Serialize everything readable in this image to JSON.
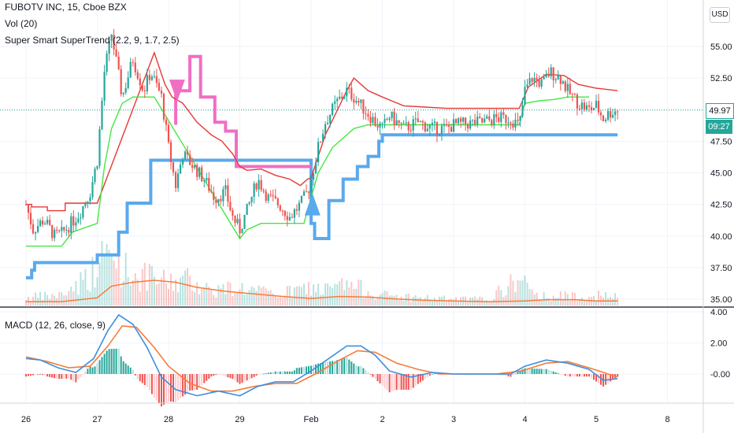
{
  "legend": {
    "title": "FUBOTV INC, 15, Cboe BZX",
    "volume": "Vol (20)",
    "supertrend": "Super Smart SuperTrend (2.2, 9, 1.7, 2.5)",
    "macd": "MACD (12, 26, close, 9)"
  },
  "currency_badge": "USD",
  "last_price_label": "49.97",
  "countdown_label": "09:27",
  "colors": {
    "up": "#26a69a",
    "down": "#ef5350",
    "trend_upper": "#e53935",
    "trend_lower": "#43e843",
    "super_blue": "#5aa9ec",
    "super_pink": "#f06ec4",
    "macd_line": "#3d8fe0",
    "signal_line": "#f57c3a",
    "volume_ma": "#f57c3a",
    "last_price_line": "#26a69a"
  },
  "chart_data": [
    {
      "type": "candlestick",
      "title": "FUBOTV INC, 15, Cboe BZX",
      "x_ticks": [
        "26",
        "27",
        "28",
        "29",
        "Feb",
        "2",
        "3",
        "4",
        "5",
        "8"
      ],
      "y_ticks": [
        "35.00",
        "37.50",
        "40.00",
        "42.50",
        "45.00",
        "47.50",
        "50.00",
        "52.50",
        "55.00"
      ],
      "ylim": [
        34.5,
        57
      ],
      "last_price": 49.97,
      "price_path": [
        [
          0,
          42.5
        ],
        [
          0.1,
          40.5
        ],
        [
          0.25,
          41.3
        ],
        [
          0.4,
          40.0
        ],
        [
          0.5,
          40.2
        ],
        [
          0.6,
          40.8
        ],
        [
          0.75,
          41.8
        ],
        [
          0.9,
          43.5
        ],
        [
          1.0,
          46.0
        ],
        [
          1.1,
          53.0
        ],
        [
          1.2,
          56.0
        ],
        [
          1.35,
          51.0
        ],
        [
          1.5,
          54.0
        ],
        [
          1.65,
          51.5
        ],
        [
          1.75,
          53.0
        ],
        [
          1.9,
          51.0
        ],
        [
          2.0,
          47.0
        ],
        [
          2.1,
          44.0
        ],
        [
          2.2,
          46.5
        ],
        [
          2.35,
          45.5
        ],
        [
          2.5,
          44.5
        ],
        [
          2.65,
          43.0
        ],
        [
          2.8,
          43.5
        ],
        [
          2.9,
          41.5
        ],
        [
          3.0,
          40.5
        ],
        [
          3.1,
          42.0
        ],
        [
          3.25,
          44.5
        ],
        [
          3.4,
          43.0
        ],
        [
          3.55,
          42.5
        ],
        [
          3.7,
          41.5
        ],
        [
          3.85,
          42.5
        ],
        [
          3.95,
          43.5
        ],
        [
          4.0,
          44.5
        ],
        [
          4.1,
          47.0
        ],
        [
          4.2,
          49.0
        ],
        [
          4.35,
          50.5
        ],
        [
          4.5,
          51.5
        ],
        [
          4.6,
          51.0
        ],
        [
          4.75,
          50.0
        ],
        [
          4.9,
          49.0
        ],
        [
          5.0,
          48.5
        ],
        [
          5.1,
          49.5
        ],
        [
          5.3,
          48.5
        ],
        [
          5.5,
          49.0
        ],
        [
          5.7,
          48.5
        ],
        [
          5.9,
          48.5
        ],
        [
          6.0,
          48.8
        ],
        [
          6.2,
          48.9
        ],
        [
          6.4,
          49.0
        ],
        [
          6.6,
          49.3
        ],
        [
          6.8,
          49.3
        ],
        [
          6.92,
          48.7
        ],
        [
          7.0,
          51.5
        ],
        [
          7.1,
          52.5
        ],
        [
          7.25,
          52.0
        ],
        [
          7.35,
          53.0
        ],
        [
          7.5,
          52.5
        ],
        [
          7.6,
          51.5
        ],
        [
          7.75,
          50.5
        ],
        [
          7.9,
          50.0
        ],
        [
          8.0,
          50.3
        ],
        [
          8.1,
          49.3
        ],
        [
          8.2,
          49.8
        ],
        [
          8.3,
          49.97
        ]
      ],
      "supertrend_upper": [
        [
          0,
          42.5
        ],
        [
          0.08,
          42.5
        ],
        [
          0.08,
          42.3
        ],
        [
          0.3,
          42.3
        ],
        [
          0.3,
          42.0
        ],
        [
          0.55,
          42.0
        ],
        [
          0.55,
          42.6
        ],
        [
          1.0,
          42.6
        ],
        [
          1.8,
          54.5
        ],
        [
          1.95,
          52.0
        ],
        [
          2.05,
          51.0
        ],
        [
          2.2,
          50.5
        ],
        [
          2.4,
          49.0
        ],
        [
          2.6,
          48.0
        ],
        [
          2.75,
          47.5
        ],
        [
          2.9,
          46.5
        ],
        [
          3.0,
          45.5
        ],
        [
          3.1,
          45.2
        ],
        [
          3.3,
          45.3
        ],
        [
          3.5,
          44.8
        ],
        [
          3.7,
          44.5
        ],
        [
          3.85,
          44.0
        ],
        [
          3.95,
          44.5
        ],
        [
          4.0,
          44.6
        ],
        [
          4.2,
          48.0
        ],
        [
          4.5,
          51.5
        ],
        [
          4.6,
          52.5
        ],
        [
          4.8,
          51.5
        ],
        [
          5.0,
          51.0
        ],
        [
          5.3,
          50.3
        ],
        [
          5.6,
          50.2
        ],
        [
          5.9,
          50.1
        ],
        [
          6.3,
          50.1
        ],
        [
          6.6,
          50.1
        ],
        [
          6.92,
          50.1
        ],
        [
          7.05,
          51.8
        ],
        [
          7.3,
          52.8
        ],
        [
          7.55,
          52.7
        ],
        [
          7.75,
          52.0
        ],
        [
          8.0,
          51.7
        ],
        [
          8.3,
          51.5
        ]
      ],
      "supertrend_lower": [
        [
          0,
          39.2
        ],
        [
          0.5,
          39.2
        ],
        [
          0.65,
          40.3
        ],
        [
          1.0,
          41.0
        ],
        [
          1.1,
          45.5
        ],
        [
          1.2,
          48.5
        ],
        [
          1.35,
          50.5
        ],
        [
          1.5,
          51.0
        ],
        [
          1.8,
          51.0
        ],
        [
          3.0,
          39.8
        ],
        [
          3.1,
          40.5
        ],
        [
          3.3,
          41.0
        ],
        [
          3.9,
          41.0
        ],
        [
          4.1,
          45.0
        ],
        [
          4.3,
          47.0
        ],
        [
          4.6,
          48.5
        ],
        [
          4.8,
          48.8
        ],
        [
          5.1,
          48.8
        ],
        [
          5.5,
          48.8
        ],
        [
          6.0,
          48.8
        ],
        [
          6.5,
          48.8
        ],
        [
          6.92,
          48.8
        ],
        [
          7.0,
          50.5
        ],
        [
          7.2,
          50.7
        ],
        [
          7.4,
          50.8
        ],
        [
          7.6,
          51.0
        ],
        [
          7.9,
          51.0
        ]
      ],
      "super_blue": [
        [
          0,
          36.7
        ],
        [
          0.08,
          36.7
        ],
        [
          0.08,
          37.3
        ],
        [
          0.12,
          37.3
        ],
        [
          0.12,
          37.9
        ],
        [
          1.0,
          37.9
        ],
        [
          1.0,
          38.5
        ],
        [
          1.3,
          38.5
        ],
        [
          1.3,
          40.3
        ],
        [
          1.42,
          40.3
        ],
        [
          1.42,
          42.6
        ],
        [
          1.75,
          42.6
        ],
        [
          1.75,
          46.0
        ],
        [
          2.1,
          46.0
        ],
        [
          2.3,
          46.0
        ],
        [
          2.3,
          46.0
        ],
        [
          3.0,
          46.0
        ],
        [
          4.0,
          46.0
        ],
        [
          4.0,
          41.0
        ],
        [
          4.05,
          41.0
        ],
        [
          4.05,
          39.8
        ],
        [
          4.25,
          39.8
        ],
        [
          4.25,
          42.8
        ],
        [
          4.45,
          42.8
        ],
        [
          4.45,
          44.5
        ],
        [
          4.65,
          44.5
        ],
        [
          4.65,
          45.5
        ],
        [
          4.8,
          45.5
        ],
        [
          4.8,
          46.3
        ],
        [
          4.95,
          46.3
        ],
        [
          4.95,
          47.5
        ],
        [
          5.0,
          47.5
        ],
        [
          5.0,
          48.0
        ],
        [
          8.3,
          48.0
        ]
      ],
      "super_pink": [
        [
          2.1,
          48.8
        ],
        [
          2.1,
          51.5
        ],
        [
          2.3,
          51.5
        ],
        [
          2.3,
          54.2
        ],
        [
          2.45,
          54.2
        ],
        [
          2.45,
          51.0
        ],
        [
          2.65,
          51.0
        ],
        [
          2.65,
          49.0
        ],
        [
          2.8,
          49.0
        ],
        [
          2.8,
          48.3
        ],
        [
          2.95,
          48.3
        ],
        [
          2.95,
          45.5
        ],
        [
          3.4,
          45.5
        ],
        [
          4.0,
          45.5
        ]
      ],
      "signals": [
        {
          "type": "sell",
          "x": 2.12,
          "price": 51.5
        },
        {
          "type": "buy",
          "x": 4.02,
          "price": 42.5
        }
      ]
    },
    {
      "type": "bar",
      "title": "Vol (20)",
      "volume_peaks": [
        [
          0,
          0.15
        ],
        [
          0.5,
          0.2
        ],
        [
          1.0,
          0.7
        ],
        [
          1.1,
          1.0
        ],
        [
          1.25,
          0.85
        ],
        [
          1.5,
          0.6
        ],
        [
          2.0,
          0.45
        ],
        [
          2.3,
          0.5
        ],
        [
          2.6,
          0.3
        ],
        [
          3.0,
          0.35
        ],
        [
          3.5,
          0.2
        ],
        [
          4.0,
          0.35
        ],
        [
          4.2,
          0.3
        ],
        [
          4.5,
          0.4
        ],
        [
          5.0,
          0.2
        ],
        [
          5.5,
          0.15
        ],
        [
          6.0,
          0.12
        ],
        [
          6.5,
          0.12
        ],
        [
          6.95,
          0.55
        ],
        [
          7.1,
          0.2
        ],
        [
          7.5,
          0.18
        ],
        [
          8.0,
          0.2
        ],
        [
          8.3,
          0.15
        ]
      ],
      "volume_ma": [
        [
          0,
          0.06
        ],
        [
          0.5,
          0.06
        ],
        [
          1.0,
          0.12
        ],
        [
          1.2,
          0.3
        ],
        [
          1.5,
          0.36
        ],
        [
          1.8,
          0.39
        ],
        [
          2.1,
          0.36
        ],
        [
          2.4,
          0.28
        ],
        [
          2.8,
          0.22
        ],
        [
          3.2,
          0.18
        ],
        [
          3.6,
          0.14
        ],
        [
          4.0,
          0.11
        ],
        [
          4.4,
          0.14
        ],
        [
          4.8,
          0.13
        ],
        [
          5.2,
          0.1
        ],
        [
          5.6,
          0.08
        ],
        [
          6.0,
          0.07
        ],
        [
          6.5,
          0.06
        ],
        [
          7.0,
          0.07
        ],
        [
          7.3,
          0.09
        ],
        [
          7.7,
          0.09
        ],
        [
          8.0,
          0.07
        ],
        [
          8.3,
          0.07
        ]
      ]
    },
    {
      "type": "line",
      "title": "MACD (12, 26, close, 9)",
      "y_ticks": [
        "-0.00",
        "2.00",
        "4.00"
      ],
      "ylim": [
        -2.3,
        4.0
      ],
      "macd_line": [
        [
          0,
          1.0
        ],
        [
          0.2,
          0.9
        ],
        [
          0.45,
          0.4
        ],
        [
          0.7,
          0.1
        ],
        [
          0.95,
          1.0
        ],
        [
          1.15,
          2.8
        ],
        [
          1.3,
          3.8
        ],
        [
          1.5,
          3.2
        ],
        [
          1.7,
          1.7
        ],
        [
          1.9,
          -0.2
        ],
        [
          2.1,
          -1.0
        ],
        [
          2.4,
          -1.4
        ],
        [
          2.7,
          -1.1
        ],
        [
          3.0,
          -1.4
        ],
        [
          3.25,
          -0.8
        ],
        [
          3.5,
          -0.5
        ],
        [
          3.75,
          -0.5
        ],
        [
          4.0,
          0.2
        ],
        [
          4.25,
          1.0
        ],
        [
          4.5,
          1.8
        ],
        [
          4.7,
          1.8
        ],
        [
          4.9,
          1.2
        ],
        [
          5.1,
          0.2
        ],
        [
          5.4,
          -0.2
        ],
        [
          5.7,
          0.1
        ],
        [
          6.0,
          0.0
        ],
        [
          6.4,
          0.0
        ],
        [
          6.8,
          0.0
        ],
        [
          7.0,
          0.5
        ],
        [
          7.3,
          0.9
        ],
        [
          7.6,
          0.7
        ],
        [
          7.9,
          0.3
        ],
        [
          8.1,
          -0.4
        ],
        [
          8.3,
          -0.3
        ]
      ],
      "signal_line": [
        [
          0,
          1.1
        ],
        [
          0.3,
          0.8
        ],
        [
          0.6,
          0.4
        ],
        [
          0.9,
          0.5
        ],
        [
          1.15,
          1.8
        ],
        [
          1.35,
          3.1
        ],
        [
          1.55,
          3.0
        ],
        [
          1.8,
          1.7
        ],
        [
          2.0,
          0.5
        ],
        [
          2.3,
          -0.6
        ],
        [
          2.6,
          -1.1
        ],
        [
          2.9,
          -1.1
        ],
        [
          3.2,
          -0.8
        ],
        [
          3.5,
          -0.6
        ],
        [
          3.8,
          -0.6
        ],
        [
          4.1,
          0.1
        ],
        [
          4.4,
          0.9
        ],
        [
          4.65,
          1.5
        ],
        [
          4.9,
          1.4
        ],
        [
          5.2,
          0.7
        ],
        [
          5.5,
          0.3
        ],
        [
          5.8,
          0.0
        ],
        [
          6.2,
          0.0
        ],
        [
          6.6,
          0.0
        ],
        [
          6.95,
          0.2
        ],
        [
          7.3,
          0.7
        ],
        [
          7.6,
          0.8
        ],
        [
          7.9,
          0.4
        ],
        [
          8.3,
          -0.2
        ]
      ]
    }
  ]
}
